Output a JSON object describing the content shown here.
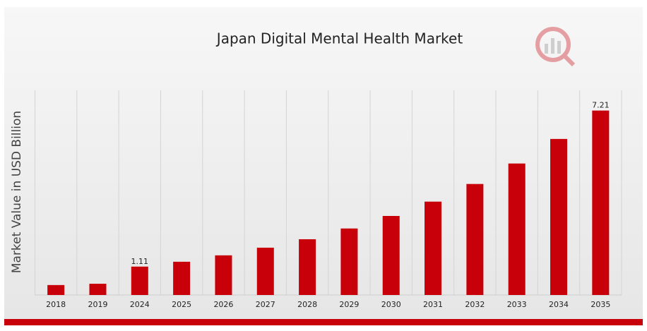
{
  "chart_data": {
    "type": "bar",
    "title": "Japan Digital Mental Health Market",
    "y_label": "Market Value in USD Billion",
    "categories": [
      "2018",
      "2019",
      "2024",
      "2025",
      "2026",
      "2027",
      "2028",
      "2029",
      "2030",
      "2031",
      "2032",
      "2033",
      "2034",
      "2035"
    ],
    "values": [
      0.39,
      0.44,
      1.11,
      1.3,
      1.55,
      1.85,
      2.18,
      2.6,
      3.09,
      3.65,
      4.34,
      5.14,
      6.1,
      7.21
    ],
    "value_labels": [
      null,
      null,
      "1.11",
      null,
      null,
      null,
      null,
      null,
      null,
      null,
      null,
      null,
      null,
      "7.21"
    ],
    "color": "#c8000a",
    "ylim": [
      0,
      8
    ]
  }
}
